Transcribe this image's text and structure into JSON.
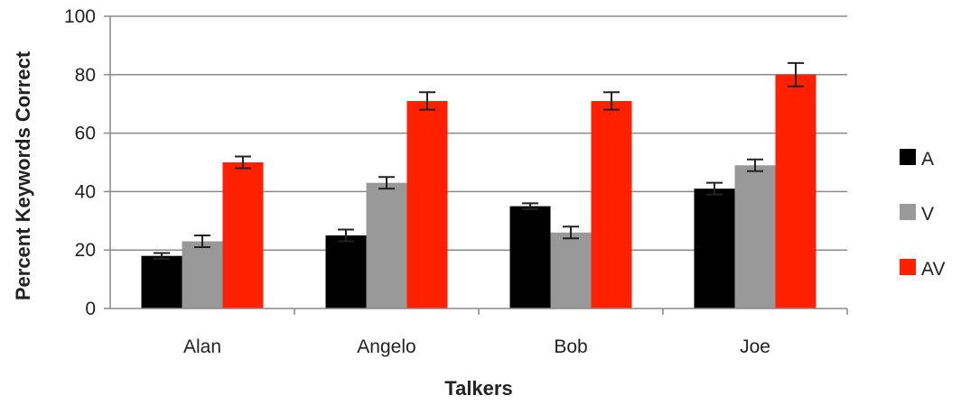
{
  "chart_data": {
    "type": "bar",
    "title": "",
    "xlabel": "Talkers",
    "ylabel": "Percent Keywords Correct",
    "ylim": [
      0,
      100
    ],
    "yticks": [
      0,
      20,
      40,
      60,
      80,
      100
    ],
    "grid": true,
    "legend_position": "right",
    "categories": [
      "Alan",
      "Angelo",
      "Bob",
      "Joe"
    ],
    "series": [
      {
        "name": "A",
        "color": "#000000",
        "values": [
          18,
          25,
          35,
          41
        ],
        "errors": [
          1,
          2,
          1,
          2
        ]
      },
      {
        "name": "V",
        "color": "#999999",
        "values": [
          23,
          43,
          26,
          49
        ],
        "errors": [
          2,
          2,
          2,
          2
        ]
      },
      {
        "name": "AV",
        "color": "#ff2000",
        "values": [
          50,
          71,
          71,
          80
        ],
        "errors": [
          2,
          3,
          3,
          4
        ]
      }
    ]
  }
}
